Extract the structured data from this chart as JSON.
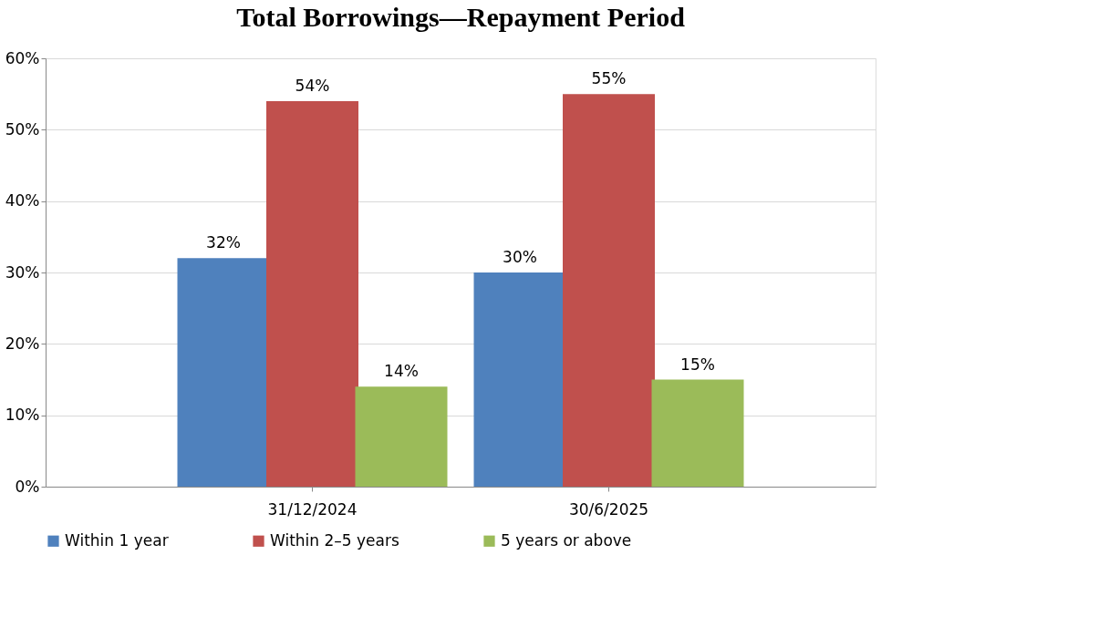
{
  "chart_data": {
    "type": "bar",
    "title": "Total Borrowings—Repayment Period",
    "categories": [
      "31/12/2024",
      "30/6/2025"
    ],
    "series": [
      {
        "name": "Within 1 year",
        "color": "#4f81bd",
        "values": [
          32,
          30
        ],
        "value_labels": [
          "32%",
          "30%"
        ]
      },
      {
        "name": "Within 2–5 years",
        "color": "#c0504d",
        "values": [
          54,
          55
        ],
        "value_labels": [
          "54%",
          "55%"
        ]
      },
      {
        "name": "5 years or above",
        "color": "#9bbb59",
        "values": [
          14,
          15
        ],
        "value_labels": [
          "14%",
          "15%"
        ]
      }
    ],
    "ylim": [
      0,
      60
    ],
    "yticks": [
      {
        "value": 0,
        "label": "0%"
      },
      {
        "value": 10,
        "label": "10%"
      },
      {
        "value": 20,
        "label": "20%"
      },
      {
        "value": 30,
        "label": "30%"
      },
      {
        "value": 40,
        "label": "40%"
      },
      {
        "value": 50,
        "label": "50%"
      },
      {
        "value": 60,
        "label": "60%"
      }
    ],
    "grid": "y",
    "legend": "bottom"
  }
}
